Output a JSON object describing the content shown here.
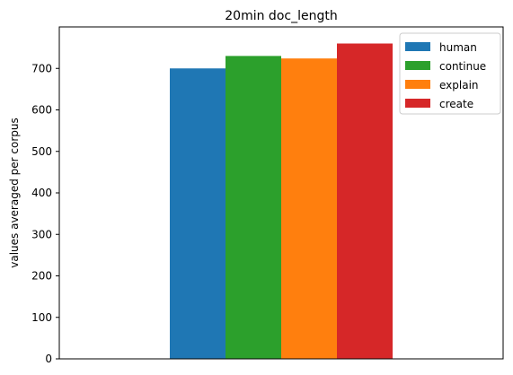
{
  "chart_data": {
    "type": "bar",
    "title": "20min doc_length",
    "xlabel": "",
    "ylabel": "values averaged per corpus",
    "ylim": [
      0,
      800
    ],
    "yticks": [
      0,
      100,
      200,
      300,
      400,
      500,
      600,
      700
    ],
    "grid": false,
    "legend_position": "top-right",
    "series": [
      {
        "name": "human",
        "value": 700,
        "color": "#1f77b4"
      },
      {
        "name": "continue",
        "value": 730,
        "color": "#2ca02c"
      },
      {
        "name": "explain",
        "value": 724,
        "color": "#ff7f0e"
      },
      {
        "name": "create",
        "value": 760,
        "color": "#d62728"
      }
    ]
  }
}
